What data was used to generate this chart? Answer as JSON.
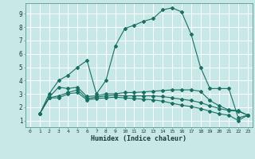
{
  "xlabel": "Humidex (Indice chaleur)",
  "xlim": [
    -0.5,
    23.5
  ],
  "ylim": [
    0.5,
    9.8
  ],
  "background_color": "#c8e8e8",
  "grid_color": "#ffffff",
  "line_color": "#1a7060",
  "line1_x": [
    1,
    2,
    3,
    4,
    5,
    6,
    7,
    8,
    9,
    10,
    11,
    12,
    13,
    14,
    15,
    16,
    17,
    18,
    19,
    20,
    21,
    22,
    23
  ],
  "line1_y": [
    1.5,
    3.0,
    4.0,
    4.4,
    5.0,
    5.5,
    3.0,
    4.0,
    6.6,
    7.9,
    8.15,
    8.45,
    8.65,
    9.3,
    9.45,
    9.15,
    7.5,
    5.0,
    3.4,
    3.4,
    3.4,
    1.2,
    1.4
  ],
  "line2_x": [
    1,
    2,
    3,
    4,
    5,
    6,
    7,
    8,
    9,
    10,
    11,
    12,
    13,
    14,
    15,
    16,
    17,
    18,
    19,
    20,
    21,
    22,
    23
  ],
  "line2_y": [
    1.5,
    2.75,
    3.5,
    3.4,
    3.5,
    2.8,
    2.85,
    3.0,
    3.0,
    3.1,
    3.1,
    3.15,
    3.2,
    3.25,
    3.3,
    3.3,
    3.3,
    3.2,
    2.5,
    2.1,
    1.8,
    1.75,
    1.4
  ],
  "line3_x": [
    1,
    2,
    3,
    4,
    5,
    6,
    7,
    8,
    9,
    10,
    11,
    12,
    13,
    14,
    15,
    16,
    17,
    18,
    19,
    20,
    21,
    22,
    23
  ],
  "line3_y": [
    1.5,
    2.7,
    2.85,
    3.1,
    3.3,
    2.65,
    2.75,
    2.85,
    2.9,
    2.85,
    2.85,
    2.85,
    2.85,
    2.8,
    2.7,
    2.6,
    2.5,
    2.35,
    2.1,
    1.9,
    1.75,
    1.7,
    1.4
  ],
  "line4_x": [
    1,
    2,
    3,
    4,
    5,
    6,
    7,
    8,
    9,
    10,
    11,
    12,
    13,
    14,
    15,
    16,
    17,
    18,
    19,
    20,
    21,
    22,
    23
  ],
  "line4_y": [
    1.5,
    2.7,
    2.7,
    3.0,
    3.1,
    2.55,
    2.65,
    2.7,
    2.75,
    2.7,
    2.65,
    2.6,
    2.55,
    2.45,
    2.3,
    2.15,
    2.05,
    1.9,
    1.7,
    1.5,
    1.4,
    1.0,
    1.4
  ],
  "yticks": [
    1,
    2,
    3,
    4,
    5,
    6,
    7,
    8,
    9
  ],
  "xticks": [
    0,
    1,
    2,
    3,
    4,
    5,
    6,
    7,
    8,
    9,
    10,
    11,
    12,
    13,
    14,
    15,
    16,
    17,
    18,
    19,
    20,
    21,
    22,
    23
  ]
}
